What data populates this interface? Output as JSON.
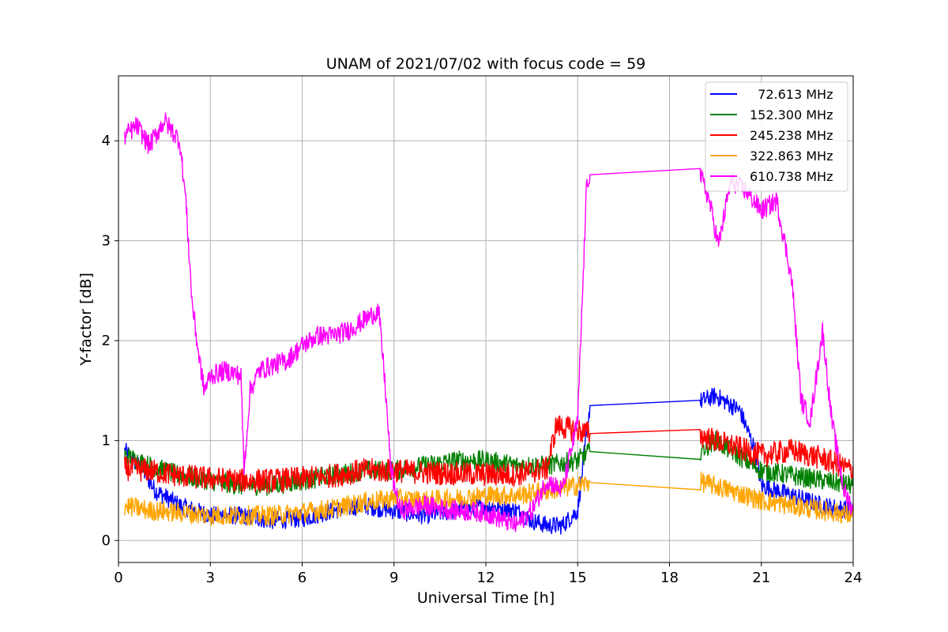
{
  "chart_data": {
    "type": "line",
    "title": "UNAM of 2021/07/02 with focus code = 59",
    "xlabel": "Universal Time [h]",
    "ylabel": "Y-factor [dB]",
    "xlim": [
      0,
      24
    ],
    "ylim": [
      -0.22,
      4.65
    ],
    "xticks": [
      0,
      3,
      6,
      9,
      12,
      15,
      18,
      21,
      24
    ],
    "yticks": [
      0,
      1,
      2,
      3,
      4
    ],
    "grid": true,
    "legend_position": "top-right",
    "series": [
      {
        "name": "  72.613 MHz",
        "color": "#0000ff",
        "noise": 0.09,
        "points": [
          [
            0.2,
            0.9
          ],
          [
            0.8,
            0.7
          ],
          [
            1.2,
            0.5
          ],
          [
            2,
            0.35
          ],
          [
            3,
            0.25
          ],
          [
            4,
            0.25
          ],
          [
            5,
            0.2
          ],
          [
            6,
            0.22
          ],
          [
            7,
            0.3
          ],
          [
            8,
            0.35
          ],
          [
            9,
            0.3
          ],
          [
            10,
            0.25
          ],
          [
            11,
            0.3
          ],
          [
            12,
            0.35
          ],
          [
            13,
            0.3
          ],
          [
            13.5,
            0.2
          ],
          [
            14,
            0.15
          ],
          [
            14.5,
            0.15
          ],
          [
            15,
            0.3
          ],
          [
            15.4,
            1.35
          ],
          [
            19,
            1.39
          ],
          [
            19.5,
            1.45
          ],
          [
            20.3,
            1.3
          ],
          [
            20.8,
            0.9
          ],
          [
            21,
            0.55
          ],
          [
            22,
            0.45
          ],
          [
            23,
            0.35
          ],
          [
            24,
            0.3
          ]
        ]
      },
      {
        "name": "152.300 MHz",
        "color": "#008000",
        "noise": 0.1,
        "points": [
          [
            0.2,
            0.85
          ],
          [
            1,
            0.75
          ],
          [
            2,
            0.65
          ],
          [
            3,
            0.6
          ],
          [
            4,
            0.55
          ],
          [
            5,
            0.55
          ],
          [
            6,
            0.6
          ],
          [
            7,
            0.65
          ],
          [
            8,
            0.7
          ],
          [
            9,
            0.7
          ],
          [
            10,
            0.75
          ],
          [
            11,
            0.8
          ],
          [
            12,
            0.8
          ],
          [
            13,
            0.75
          ],
          [
            14,
            0.75
          ],
          [
            15,
            0.8
          ],
          [
            15.4,
            0.89
          ],
          [
            19,
            0.9
          ],
          [
            19.5,
            1.0
          ],
          [
            20,
            0.9
          ],
          [
            21,
            0.7
          ],
          [
            22,
            0.65
          ],
          [
            23,
            0.6
          ],
          [
            24,
            0.55
          ]
        ]
      },
      {
        "name": "245.238 MHz",
        "color": "#ff0000",
        "noise": 0.12,
        "points": [
          [
            0.2,
            0.72
          ],
          [
            1,
            0.7
          ],
          [
            2,
            0.65
          ],
          [
            3,
            0.62
          ],
          [
            4,
            0.6
          ],
          [
            5,
            0.6
          ],
          [
            6,
            0.62
          ],
          [
            7,
            0.65
          ],
          [
            8,
            0.7
          ],
          [
            9,
            0.7
          ],
          [
            10,
            0.68
          ],
          [
            11,
            0.67
          ],
          [
            12,
            0.66
          ],
          [
            13,
            0.66
          ],
          [
            14,
            0.72
          ],
          [
            14.3,
            1.15
          ],
          [
            15,
            1.1
          ],
          [
            15.4,
            1.07
          ],
          [
            19,
            1.05
          ],
          [
            20,
            0.95
          ],
          [
            21,
            0.85
          ],
          [
            22,
            0.9
          ],
          [
            23,
            0.82
          ],
          [
            24,
            0.7
          ]
        ]
      },
      {
        "name": "322.863 MHz",
        "color": "#ffa500",
        "noise": 0.1,
        "points": [
          [
            0.2,
            0.35
          ],
          [
            1,
            0.3
          ],
          [
            2,
            0.28
          ],
          [
            3,
            0.25
          ],
          [
            4,
            0.25
          ],
          [
            5,
            0.25
          ],
          [
            6,
            0.28
          ],
          [
            7,
            0.32
          ],
          [
            8,
            0.38
          ],
          [
            9,
            0.42
          ],
          [
            10,
            0.4
          ],
          [
            11,
            0.42
          ],
          [
            12,
            0.45
          ],
          [
            13,
            0.45
          ],
          [
            14,
            0.5
          ],
          [
            15,
            0.55
          ],
          [
            15.4,
            0.58
          ],
          [
            19,
            0.59
          ],
          [
            20,
            0.5
          ],
          [
            21,
            0.4
          ],
          [
            22,
            0.35
          ],
          [
            23,
            0.3
          ],
          [
            24,
            0.25
          ]
        ]
      },
      {
        "name": "610.738 MHz",
        "color": "#ff00ff",
        "noise": 0.1,
        "points": [
          [
            0.2,
            4.05
          ],
          [
            0.6,
            4.15
          ],
          [
            1.0,
            3.95
          ],
          [
            1.5,
            4.2
          ],
          [
            2.0,
            4.0
          ],
          [
            2.2,
            3.4
          ],
          [
            2.4,
            2.4
          ],
          [
            2.6,
            1.9
          ],
          [
            2.8,
            1.5
          ],
          [
            3.0,
            1.65
          ],
          [
            3.5,
            1.7
          ],
          [
            4.0,
            1.65
          ],
          [
            4.1,
            0.7
          ],
          [
            4.3,
            1.5
          ],
          [
            4.6,
            1.7
          ],
          [
            5.0,
            1.75
          ],
          [
            5.5,
            1.8
          ],
          [
            6,
            1.95
          ],
          [
            6.5,
            2.05
          ],
          [
            7,
            2.05
          ],
          [
            7.5,
            2.1
          ],
          [
            8,
            2.2
          ],
          [
            8.5,
            2.3
          ],
          [
            8.7,
            1.6
          ],
          [
            8.9,
            0.7
          ],
          [
            9.2,
            0.3
          ],
          [
            10,
            0.35
          ],
          [
            11,
            0.3
          ],
          [
            12,
            0.28
          ],
          [
            13,
            0.15
          ],
          [
            13.5,
            0.3
          ],
          [
            14,
            0.6
          ],
          [
            14.5,
            0.5
          ],
          [
            15,
            1.2
          ],
          [
            15.3,
            3.6
          ],
          [
            15.4,
            3.66
          ],
          [
            19,
            3.66
          ],
          [
            19.3,
            3.4
          ],
          [
            19.6,
            2.95
          ],
          [
            20,
            3.6
          ],
          [
            20.5,
            3.5
          ],
          [
            21,
            3.3
          ],
          [
            21.5,
            3.4
          ],
          [
            22,
            2.6
          ],
          [
            22.3,
            1.4
          ],
          [
            22.6,
            1.2
          ],
          [
            23,
            2.1
          ],
          [
            23.3,
            1.2
          ],
          [
            23.7,
            0.5
          ],
          [
            24,
            0.3
          ]
        ]
      }
    ]
  }
}
